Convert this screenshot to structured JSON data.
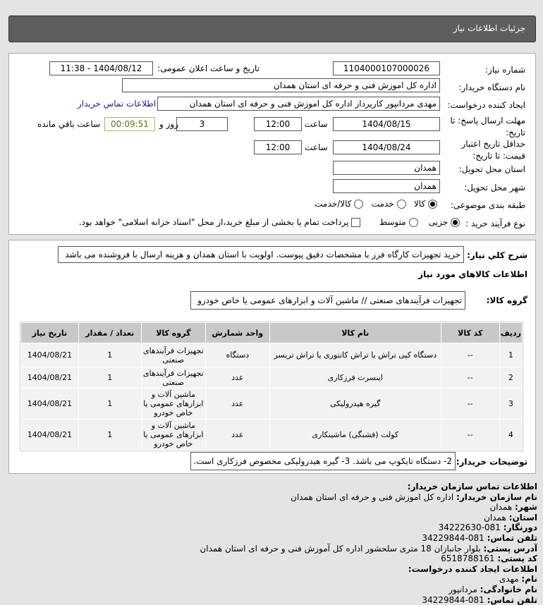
{
  "header": {
    "title": "جزئیات اطلاعات نیاز"
  },
  "form": {
    "need_number_label": "شماره نیاز:",
    "need_number": "1104000107000026",
    "announce_label": "تاریخ و ساعت اعلان عمومی:",
    "announce_value": "1404/08/12 - 11:38",
    "buyer_label": "نام دستگاه خریدار:",
    "buyer_value": "اداره کل اموزش فنی و حرفه ای استان همدان",
    "creator_label": "ایجاد کننده درخواست:",
    "creator_value": "مهدی مردانپور کارپرداز اداره کل اموزش فنی و حرفه ای استان همدان",
    "contact_link": "اطلاعات تماس خریدار",
    "deadline_label": "مهلت ارسال پاسخ: تا تاریخ:",
    "deadline_date": "1404/08/15",
    "time_label": "ساعت",
    "deadline_time": "12:00",
    "days": "3",
    "days_label": "روز و",
    "remaining": "00:09:51",
    "remaining_label": "ساعت باقي مانده",
    "validity_label": "حداقل تاریخ اعتبار قیمت: تا تاریخ:",
    "validity_date": "1404/08/24",
    "validity_time": "12:00",
    "province_label": "استان محل تحویل:",
    "province": "همدان",
    "city_label": "شهر محل تحویل:",
    "city": "همدان",
    "category_label": "طبقه بندی موضوعی:",
    "category_options": [
      "کالا",
      "خدمت",
      "کالا/خدمت"
    ],
    "category_selected": "کالا",
    "process_label": "نوع فرآیند خرید :",
    "process_options": [
      "جزیی",
      "متوسط"
    ],
    "process_selected": "جزیی",
    "payment_note": "پرداخت تمام یا بخشی از مبلغ خرید،از محل \"اسناد خزانه اسلامی\" خواهد بود."
  },
  "summary": {
    "label": "شرح کلي نیاز:",
    "value": "خرید تجهیزات کارگاه فرز با مشخصات دقیق پیوست. اولویت با استان همدان و هزینه ارسال با فروشنده می باشد"
  },
  "goods_title": "اطلاعات کالاهاي مورد نیاز",
  "group": {
    "label": "گروه کالا:",
    "value": "تجهیزات فرآیندهای صنعتی // ماشین آلات و ابزارهای عمومی یا خاص خودرو"
  },
  "table": {
    "headers": [
      "ردیف",
      "کد کالا",
      "نام کالا",
      "واحد شمارش",
      "گروه کالا",
      "تعداد / مقدار",
      "تاریخ نیاز"
    ],
    "rows": [
      [
        "1",
        "--",
        "دستگاه کپی تراش یا تراش کانتوری یا تراش تریسر",
        "دستگاه",
        "تجهیزات فرآیندهای صنعتی",
        "1",
        "1404/08/21"
      ],
      [
        "2",
        "--",
        "اینسرت فرزکاری",
        "عدد",
        "تجهیزات فرآیندهای صنعتی",
        "1",
        "1404/08/21"
      ],
      [
        "3",
        "--",
        "گیره هیدرولیکی",
        "عدد",
        "ماشین آلات و ابزارهای عمومی یا خاص خودرو",
        "1",
        "1404/08/21"
      ],
      [
        "4",
        "--",
        "کولت (فشنگی) ماشینکاری",
        "عدد",
        "ماشین آلات و ابزارهای عمومی یا خاص خودرو",
        "1",
        "1404/08/21"
      ]
    ]
  },
  "buyer_notes": {
    "label": "توضیحات خریدار:",
    "value": "2- دستگاه تایکوپ می باشد. 3- گیره هیدرولیکی مخصوص فرزکاری است."
  },
  "contact": {
    "title": "اطلاعات تماس سازمان خریدار:",
    "org_label": "نام سازمان خریدار:",
    "org": "اداره کل اموزش فنی و حرفه ای استان همدان",
    "city_label": "شهر:",
    "city": "همدان",
    "province_label": "استان:",
    "province": "همدان",
    "fax_label": "دورنگار:",
    "fax": "081-34222630",
    "phone_label": "تلفن تماس:",
    "phone": "081-34229844",
    "address_label": "آدرس پستی:",
    "address": "بلوار جانبازان 18 متری سلحشور اداره کل آموزش فنی و حرفه ای استان همدان",
    "postal_label": "کد پستی:",
    "postal": "6518788161",
    "creator_title": "اطلاعات ایجاد کننده درخواست:",
    "name_label": "نام:",
    "name": "مهدی",
    "family_label": "نام خانوادگی:",
    "family": "مردانپور",
    "creator_phone_label": "تلفن تماس:",
    "creator_phone": "081-34229844"
  }
}
